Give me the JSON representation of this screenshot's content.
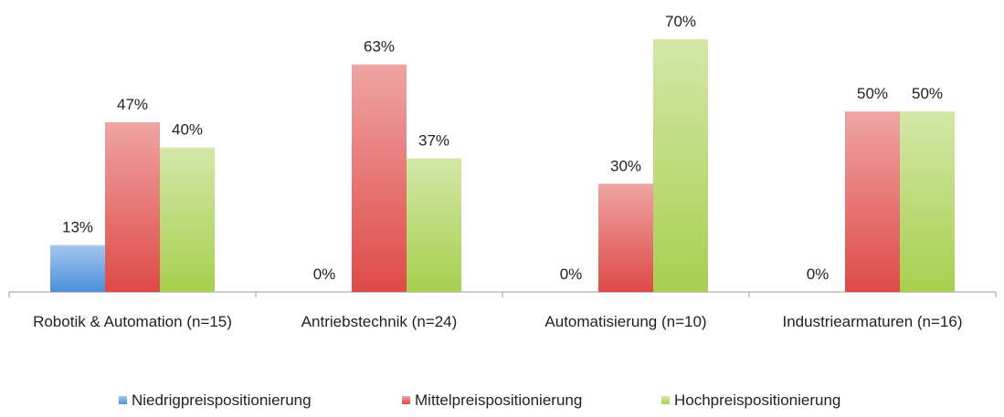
{
  "chart_data": {
    "type": "bar",
    "categories": [
      "Robotik & Automation (n=15)",
      "Antriebstechnik (n=24)",
      "Automatisierung (n=10)",
      "Industriearmaturen (n=16)"
    ],
    "series": [
      {
        "name": "Niedrigpreispositionierung",
        "color": "#4a8fdc",
        "values": [
          13,
          0,
          0,
          0
        ],
        "value_labels": [
          "13%",
          "0%",
          "0%",
          "0%"
        ]
      },
      {
        "name": "Mittelpreispositionierung",
        "color": "#de4a47",
        "values": [
          47,
          63,
          30,
          50
        ],
        "value_labels": [
          "47%",
          "63%",
          "30%",
          "50%"
        ]
      },
      {
        "name": "Hochpreispositionierung",
        "color": "#a8cf4f",
        "values": [
          40,
          37,
          70,
          50
        ],
        "value_labels": [
          "40%",
          "37%",
          "70%",
          "50%"
        ]
      }
    ],
    "legend": "bottom"
  }
}
